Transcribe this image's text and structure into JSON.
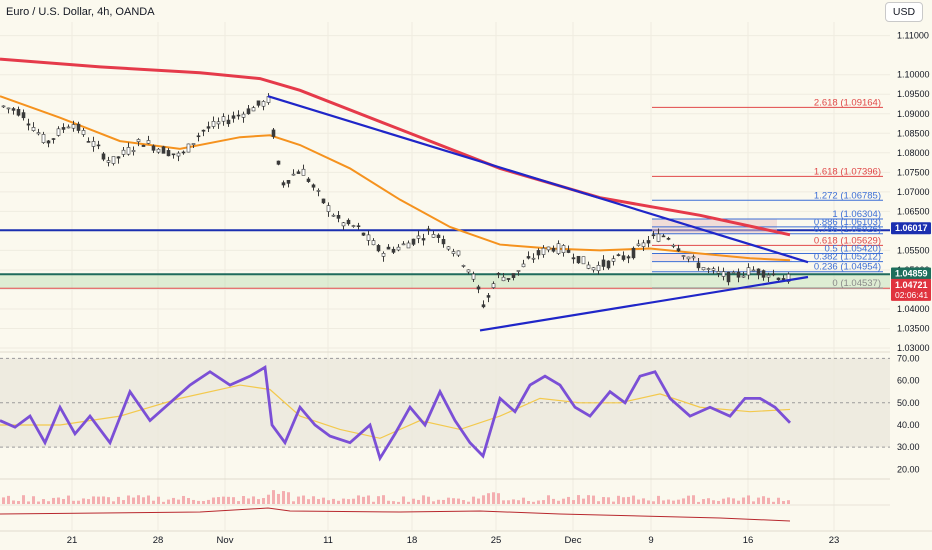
{
  "header": {
    "title": "Euro / U.S. Dollar, 4h, OANDA",
    "currency_button": "USD"
  },
  "colors": {
    "background": "#fbf9ee",
    "candle": "#3a3a3a",
    "ma_red": "#e53a4a",
    "ma_orange": "#f5921e",
    "trendline": "#1f26c8",
    "resistance": "#1b2fb0",
    "support_band": "#a9d6a0",
    "fib_red": "#e04848",
    "fib_blue": "#3d6fd6",
    "rsi": "#7b4fd6",
    "rsi_ma": "#f3c94d",
    "volume": "#f4aeb0"
  },
  "chart_data": [
    {
      "type": "candlestick",
      "title": "Euro / U.S. Dollar, 4h, OANDA",
      "ylim": [
        1.0295,
        1.1135
      ],
      "y_ticks": [
        "1.11000",
        "1.10000",
        "1.09500",
        "1.09000",
        "1.08500",
        "1.08000",
        "1.07500",
        "1.07000",
        "1.06500",
        "1.06000",
        "1.05500",
        "1.05000",
        "1.04500",
        "1.04000",
        "1.03500",
        "1.03000"
      ],
      "x_ticks": [
        "21",
        "28",
        "Nov",
        "11",
        "18",
        "25",
        "Dec",
        "9",
        "16",
        "23"
      ],
      "price_path": [
        [
          0,
          1.092
        ],
        [
          20,
          1.0905
        ],
        [
          45,
          1.0825
        ],
        [
          70,
          1.088
        ],
        [
          110,
          1.0775
        ],
        [
          140,
          1.083
        ],
        [
          180,
          1.079
        ],
        [
          200,
          1.0855
        ],
        [
          240,
          1.09
        ],
        [
          268,
          1.0935
        ],
        [
          272,
          1.085
        ],
        [
          280,
          1.072
        ],
        [
          300,
          1.076
        ],
        [
          320,
          1.068
        ],
        [
          340,
          1.062
        ],
        [
          355,
          1.061
        ],
        [
          380,
          1.0545
        ],
        [
          400,
          1.056
        ],
        [
          430,
          1.06
        ],
        [
          450,
          1.056
        ],
        [
          470,
          1.0495
        ],
        [
          483,
          1.0405
        ],
        [
          495,
          1.0485
        ],
        [
          510,
          1.048
        ],
        [
          530,
          1.053
        ],
        [
          550,
          1.056
        ],
        [
          570,
          1.0545
        ],
        [
          590,
          1.0505
        ],
        [
          610,
          1.052
        ],
        [
          630,
          1.054
        ],
        [
          650,
          1.058
        ],
        [
          665,
          1.059
        ],
        [
          690,
          1.0525
        ],
        [
          710,
          1.0495
        ],
        [
          730,
          1.048
        ],
        [
          750,
          1.05
        ],
        [
          770,
          1.049
        ],
        [
          790,
          1.0475
        ]
      ],
      "series": [
        {
          "name": "",
          "type": "ma",
          "path": [
            [
              0,
              1.104
            ],
            [
              100,
              1.102
            ],
            [
              200,
              1.1005
            ],
            [
              260,
              1.099
            ],
            [
              300,
              1.096
            ],
            [
              400,
              1.086
            ],
            [
              500,
              1.076
            ],
            [
              600,
              1.0685
            ],
            [
              700,
              1.064
            ],
            [
              790,
              1.059
            ]
          ]
        },
        {
          "name": "",
          "type": "ma",
          "path": [
            [
              0,
              1.0945
            ],
            [
              60,
              1.089
            ],
            [
              120,
              1.083
            ],
            [
              180,
              1.081
            ],
            [
              240,
              1.084
            ],
            [
              270,
              1.0845
            ],
            [
              300,
              1.082
            ],
            [
              350,
              1.076
            ],
            [
              400,
              1.068
            ],
            [
              450,
              1.061
            ],
            [
              500,
              1.0565
            ],
            [
              550,
              1.0555
            ],
            [
              600,
              1.055
            ],
            [
              650,
              1.0555
            ],
            [
              700,
              1.0542
            ],
            [
              750,
              1.053
            ],
            [
              790,
              1.0525
            ]
          ]
        }
      ],
      "trendlines": [
        {
          "from": [
            268,
            1.0945
          ],
          "to": [
            808,
            1.052
          ]
        },
        {
          "from": [
            480,
            1.0345
          ],
          "to": [
            808,
            1.0482
          ]
        }
      ],
      "horizontal_levels": [
        {
          "price": 1.06017,
          "label": "1.06017"
        },
        {
          "price": 1.04859,
          "label": "1.04859"
        },
        {
          "price": 1.04721,
          "label": "1.04721",
          "sublabel": "02:06:41"
        }
      ],
      "fibonacci": [
        {
          "ratio": "2.618",
          "price": "1.09164",
          "label": "2.618 (1.09164)"
        },
        {
          "ratio": "1.618",
          "price": "1.07396",
          "label": "1.618 (1.07396)"
        },
        {
          "ratio": "1.272",
          "price": "1.06785",
          "label": "1.272 (1.06785)"
        },
        {
          "ratio": "1",
          "price": "1.06304",
          "label": "1 (1.06304)"
        },
        {
          "ratio": "0.886",
          "price": "1.06103",
          "label": "0.886 (1.06103)"
        },
        {
          "ratio": "0.786",
          "price": "1.05926",
          "label": "0.786 (1.05926)"
        },
        {
          "ratio": "0.618",
          "price": "1.05629",
          "label": "0.618 (1.05629)"
        },
        {
          "ratio": "0.5",
          "price": "1.05420",
          "label": "0.5 (1.05420)"
        },
        {
          "ratio": "0.382",
          "price": "1.05212",
          "label": "0.382 (1.05212)"
        },
        {
          "ratio": "0.236",
          "price": "1.04954",
          "label": "0.236 (1.04954)"
        },
        {
          "ratio": "0",
          "price": "1.04537",
          "label": "0 (1.04537)"
        }
      ]
    },
    {
      "type": "line",
      "title": "",
      "ylim": [
        17,
        72
      ],
      "y_ticks": [
        "70.00",
        "60.00",
        "50.00",
        "40.00",
        "30.00",
        "20.00"
      ],
      "reference_lines": [
        70,
        50,
        30
      ],
      "series": [
        {
          "name": "",
          "path": [
            [
              0,
              42
            ],
            [
              15,
              39
            ],
            [
              30,
              44
            ],
            [
              45,
              32
            ],
            [
              60,
              48
            ],
            [
              75,
              36
            ],
            [
              90,
              44
            ],
            [
              110,
              32
            ],
            [
              130,
              55
            ],
            [
              150,
              42
            ],
            [
              170,
              50
            ],
            [
              190,
              58
            ],
            [
              210,
              64
            ],
            [
              230,
              58
            ],
            [
              250,
              62
            ],
            [
              265,
              66
            ],
            [
              272,
              40
            ],
            [
              285,
              32
            ],
            [
              300,
              48
            ],
            [
              315,
              40
            ],
            [
              330,
              35
            ],
            [
              350,
              32
            ],
            [
              370,
              40
            ],
            [
              380,
              25
            ],
            [
              395,
              36
            ],
            [
              410,
              48
            ],
            [
              425,
              40
            ],
            [
              440,
              55
            ],
            [
              455,
              42
            ],
            [
              470,
              32
            ],
            [
              483,
              26
            ],
            [
              500,
              52
            ],
            [
              515,
              46
            ],
            [
              530,
              58
            ],
            [
              545,
              62
            ],
            [
              560,
              58
            ],
            [
              575,
              48
            ],
            [
              590,
              44
            ],
            [
              610,
              55
            ],
            [
              625,
              50
            ],
            [
              640,
              62
            ],
            [
              655,
              64
            ],
            [
              670,
              52
            ],
            [
              690,
              44
            ],
            [
              710,
              48
            ],
            [
              730,
              44
            ],
            [
              745,
              52
            ],
            [
              760,
              52
            ],
            [
              775,
              48
            ],
            [
              790,
              41
            ]
          ]
        },
        {
          "name": "",
          "path": [
            [
              0,
              40
            ],
            [
              60,
              40
            ],
            [
              120,
              44
            ],
            [
              180,
              52
            ],
            [
              240,
              58
            ],
            [
              270,
              56
            ],
            [
              300,
              44
            ],
            [
              340,
              38
            ],
            [
              380,
              34
            ],
            [
              420,
              42
            ],
            [
              460,
              38
            ],
            [
              500,
              44
            ],
            [
              540,
              52
            ],
            [
              580,
              50
            ],
            [
              620,
              50
            ],
            [
              660,
              54
            ],
            [
              700,
              48
            ],
            [
              750,
              46
            ],
            [
              790,
              47
            ]
          ]
        }
      ]
    }
  ]
}
